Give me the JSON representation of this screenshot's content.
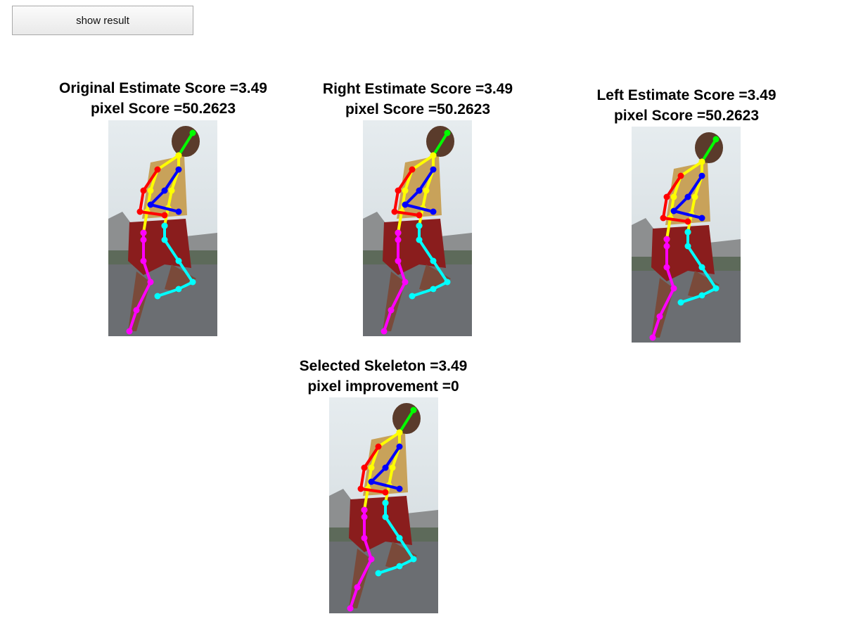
{
  "toolbar": {
    "show_result_label": "show result"
  },
  "panels": [
    {
      "line1": "Original Estimate Score =3.49",
      "line2": "pixel Score =50.2623"
    },
    {
      "line1": "Right Estimate Score =3.49",
      "line2": "pixel Score =50.2623"
    },
    {
      "line1": "Left Estimate Score =3.49",
      "line2": "pixel Score =50.2623"
    },
    {
      "line1": "Selected Skeleton =3.49",
      "line2": "pixel improvement =0"
    }
  ],
  "colors": {
    "head": "#00ff00",
    "torso": "#ffff00",
    "right_arm": "#ff0000",
    "left_arm": "#0000ff",
    "right_leg": "#ff00ff",
    "left_leg": "#00ffff"
  }
}
